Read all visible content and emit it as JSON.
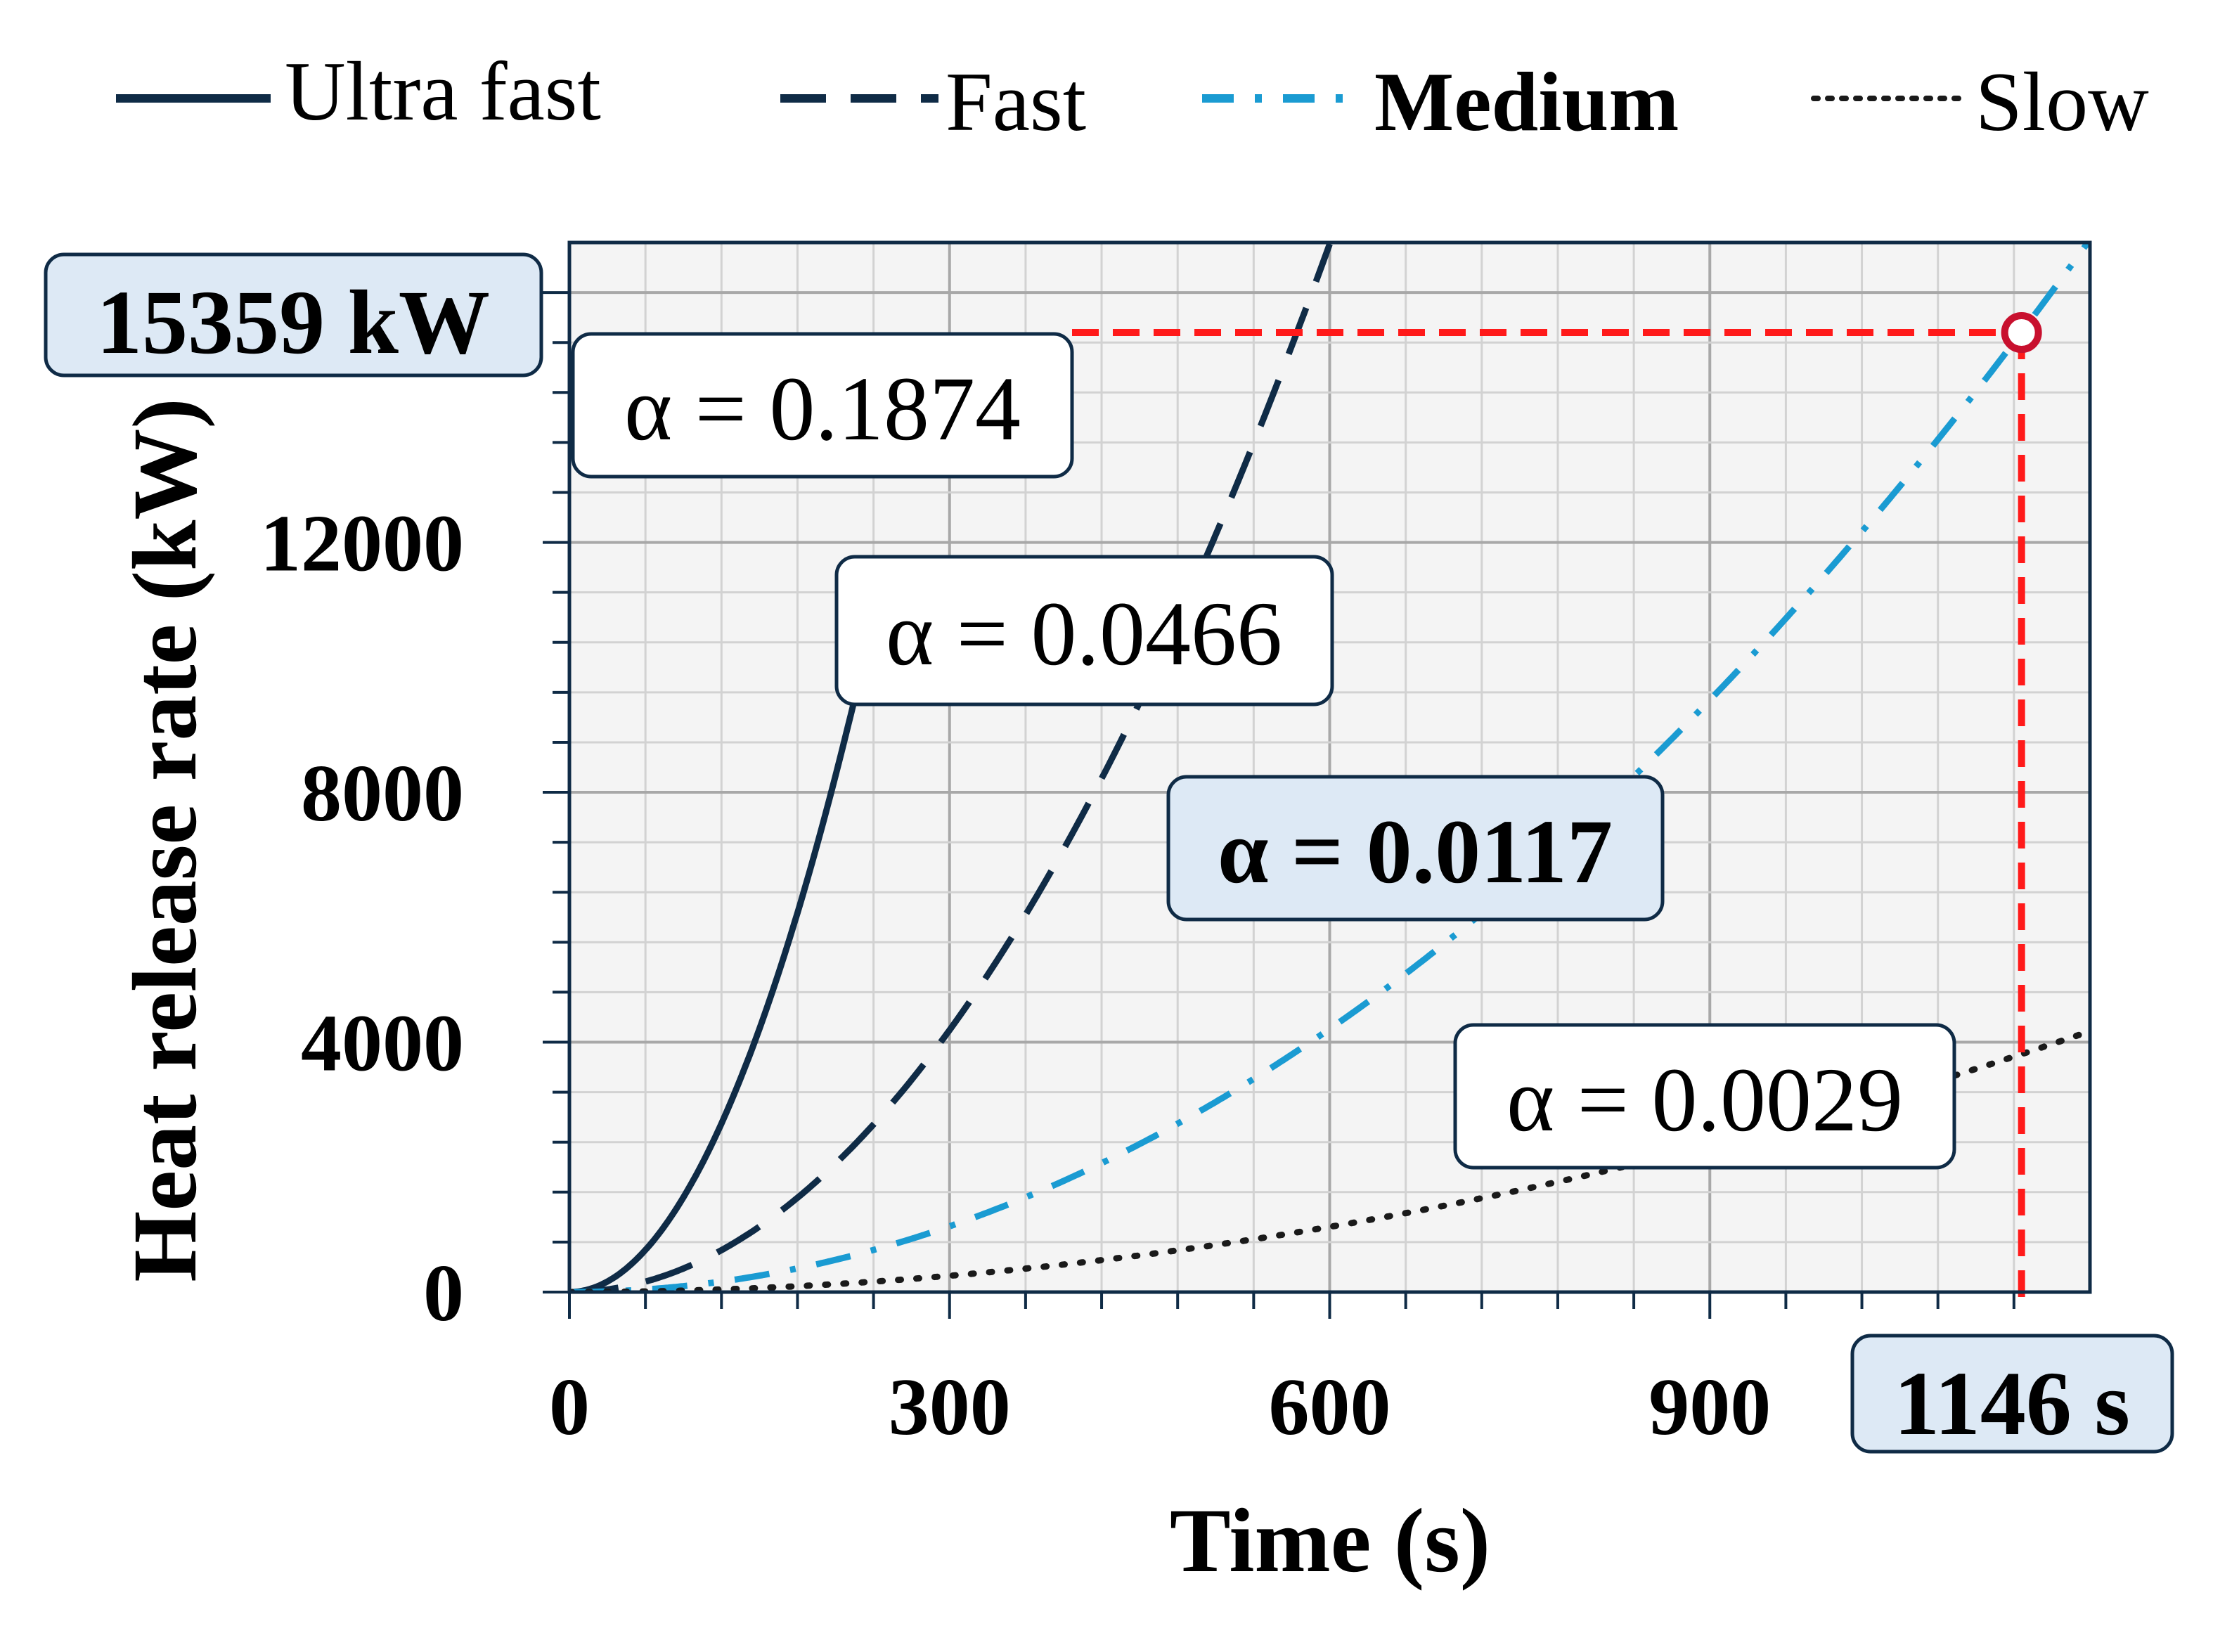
{
  "chart_data": {
    "type": "line",
    "xlabel": "Time (s)",
    "ylabel": "Heat release rate (kW)",
    "xlim": [
      0,
      1200
    ],
    "ylim": [
      0,
      16800
    ],
    "xticks": [
      0,
      300,
      600,
      900
    ],
    "yticks": [
      0,
      4000,
      8000,
      12000
    ],
    "grid": true,
    "legend_position": "top",
    "series": [
      {
        "name": "Ultra fast",
        "alpha": 0.1874,
        "label": "α = 0.1874",
        "style": "solid",
        "color": "#0f2b46",
        "bold": false,
        "x": [
          0,
          50,
          100,
          150,
          200,
          250
        ],
        "y": [
          0,
          469,
          1874,
          4217,
          7496,
          11713
        ]
      },
      {
        "name": "Fast",
        "alpha": 0.0466,
        "label": "α = 0.0466",
        "style": "dashed",
        "color": "#0f2b46",
        "bold": false,
        "x": [
          0,
          100,
          200,
          300,
          400,
          500,
          600
        ],
        "y": [
          0,
          466,
          1864,
          4194,
          7456,
          11650,
          16776
        ]
      },
      {
        "name": "Medium",
        "alpha": 0.0117,
        "label": "α = 0.0117",
        "style": "dashdot",
        "color": "#1a9bd2",
        "bold": true,
        "x": [
          0,
          200,
          400,
          600,
          800,
          1000,
          1146,
          1200
        ],
        "y": [
          0,
          468,
          1872,
          4212,
          7488,
          11700,
          15359,
          16848
        ]
      },
      {
        "name": "Slow",
        "alpha": 0.0029,
        "label": "α = 0.0029",
        "style": "dotted",
        "color": "#1a1a1a",
        "bold": false,
        "x": [
          0,
          300,
          600,
          900,
          1200
        ],
        "y": [
          0,
          261,
          1044,
          2349,
          4176
        ]
      }
    ],
    "annotations": {
      "highlight_point": {
        "x": 1146,
        "y": 15359
      },
      "y_callout": "15359 kW",
      "x_callout": "1146 s"
    },
    "colors": {
      "dark": "#0f2b46",
      "medium": "#1a9bd2",
      "slow": "#1a1a1a",
      "reference": "#ff1a1a",
      "point": "#c8102e",
      "highlight_fill": "#dde9f5",
      "plot_bg": "#f4f4f4"
    }
  }
}
